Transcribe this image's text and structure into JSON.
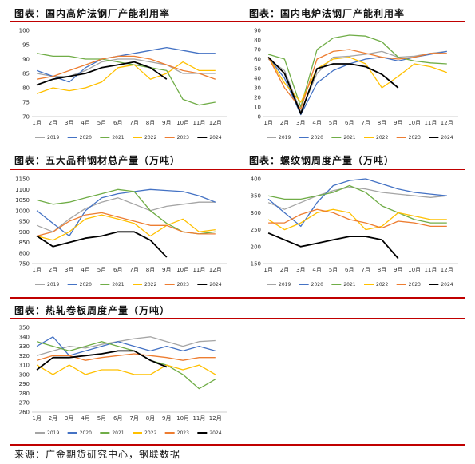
{
  "source": "来源：广金期货研究中心，钢联数据",
  "legend_years": [
    "2019",
    "2020",
    "2021",
    "2022",
    "2023",
    "2024"
  ],
  "colors": {
    "2019": "#a5a5a5",
    "2020": "#4472c4",
    "2021": "#70ad47",
    "2022": "#ffc000",
    "2023": "#ed7d31",
    "2024": "#000000",
    "rule": "#c00000"
  },
  "months": [
    "1月",
    "2月",
    "3月",
    "4月",
    "5月",
    "6月",
    "7月",
    "8月",
    "9月",
    "10月",
    "11月",
    "12月"
  ],
  "charts": [
    {
      "title": "图表：国内高炉法钢厂产能利用率",
      "chart_data": {
        "type": "line",
        "ylim": [
          70,
          100
        ],
        "yticks": [
          70,
          75,
          80,
          85,
          90,
          95,
          100
        ],
        "series": [
          {
            "name": "2019",
            "values": [
              85,
              84,
              84,
              86,
              89,
              90,
              90,
              89,
              88,
              85,
              85,
              85
            ]
          },
          {
            "name": "2020",
            "values": [
              86,
              84,
              82,
              87,
              90,
              91,
              92,
              93,
              94,
              93,
              92,
              92
            ]
          },
          {
            "name": "2021",
            "values": [
              92,
              91,
              91,
              90,
              90,
              89,
              88,
              87,
              86,
              76,
              74,
              75
            ]
          },
          {
            "name": "2022",
            "values": [
              78,
              80,
              79,
              80,
              82,
              87,
              88,
              83,
              85,
              89,
              86,
              86
            ]
          },
          {
            "name": "2023",
            "values": [
              83,
              84,
              86,
              88,
              90,
              91,
              91,
              90,
              88,
              86,
              85,
              83
            ]
          },
          {
            "name": "2024",
            "values": [
              81,
              83,
              84,
              85,
              87,
              88,
              89,
              87,
              83,
              null,
              null,
              null
            ]
          }
        ]
      }
    },
    {
      "title": "图表：国内电炉法钢厂产能利用率",
      "chart_data": {
        "type": "line",
        "ylim": [
          0,
          90
        ],
        "yticks": [
          0,
          10,
          20,
          30,
          40,
          50,
          60,
          70,
          80,
          90
        ],
        "series": [
          {
            "name": "2019",
            "values": [
              60,
              48,
              5,
              45,
              62,
              63,
              65,
              68,
              62,
              63,
              66,
              68
            ]
          },
          {
            "name": "2020",
            "values": [
              62,
              40,
              2,
              35,
              48,
              55,
              60,
              62,
              58,
              62,
              65,
              68
            ]
          },
          {
            "name": "2021",
            "values": [
              65,
              60,
              10,
              70,
              82,
              85,
              84,
              78,
              62,
              58,
              56,
              55
            ]
          },
          {
            "name": "2022",
            "values": [
              62,
              35,
              15,
              50,
              60,
              62,
              55,
              30,
              42,
              55,
              52,
              46
            ]
          },
          {
            "name": "2023",
            "values": [
              62,
              30,
              8,
              60,
              68,
              70,
              66,
              62,
              60,
              62,
              66,
              66
            ]
          },
          {
            "name": "2024",
            "values": [
              62,
              45,
              3,
              50,
              55,
              55,
              52,
              44,
              30,
              null,
              null,
              null
            ]
          }
        ]
      }
    },
    {
      "title": "图表：五大品种钢材总产量（万吨）",
      "chart_data": {
        "type": "line",
        "ylim": [
          750,
          1150
        ],
        "yticks": [
          750,
          800,
          850,
          900,
          950,
          1000,
          1050,
          1100,
          1150
        ],
        "series": [
          {
            "name": "2019",
            "values": [
              930,
              900,
              960,
              1010,
              1040,
              1060,
              1030,
              1000,
              1020,
              1030,
              1040,
              1040
            ]
          },
          {
            "name": "2020",
            "values": [
              1000,
              940,
              880,
              1000,
              1060,
              1080,
              1090,
              1100,
              1095,
              1090,
              1070,
              1040
            ]
          },
          {
            "name": "2021",
            "values": [
              1050,
              1030,
              1040,
              1060,
              1080,
              1100,
              1090,
              1000,
              940,
              900,
              890,
              900
            ]
          },
          {
            "name": "2022",
            "values": [
              880,
              860,
              900,
              960,
              980,
              960,
              940,
              880,
              930,
              960,
              900,
              910
            ]
          },
          {
            "name": "2023",
            "values": [
              880,
              900,
              950,
              980,
              990,
              970,
              950,
              930,
              930,
              900,
              890,
              890
            ]
          },
          {
            "name": "2024",
            "values": [
              880,
              830,
              850,
              870,
              880,
              900,
              900,
              860,
              780,
              null,
              null,
              null
            ]
          }
        ]
      }
    },
    {
      "title": "图表：螺纹钢周度产量（万吨）",
      "chart_data": {
        "type": "line",
        "ylim": [
          150,
          400
        ],
        "yticks": [
          150,
          200,
          250,
          300,
          350,
          400
        ],
        "series": [
          {
            "name": "2019",
            "values": [
              330,
              310,
              330,
              350,
              365,
              375,
              370,
              360,
              355,
              350,
              345,
              350
            ]
          },
          {
            "name": "2020",
            "values": [
              340,
              300,
              260,
              330,
              380,
              395,
              400,
              385,
              370,
              360,
              355,
              350
            ]
          },
          {
            "name": "2021",
            "values": [
              350,
              340,
              340,
              350,
              360,
              380,
              360,
              320,
              300,
              280,
              270,
              270
            ]
          },
          {
            "name": "2022",
            "values": [
              280,
              250,
              270,
              300,
              310,
              300,
              250,
              260,
              300,
              290,
              280,
              280
            ]
          },
          {
            "name": "2023",
            "values": [
              270,
              270,
              295,
              310,
              300,
              280,
              270,
              255,
              275,
              270,
              260,
              260
            ]
          },
          {
            "name": "2024",
            "values": [
              240,
              220,
              200,
              210,
              220,
              230,
              230,
              220,
              165,
              null,
              null,
              null
            ]
          }
        ]
      }
    },
    {
      "title": "图表：热轧卷板周度产量（万吨）",
      "chart_data": {
        "type": "line",
        "ylim": [
          260,
          350
        ],
        "yticks": [
          260,
          270,
          280,
          290,
          300,
          310,
          320,
          330,
          340,
          350
        ],
        "series": [
          {
            "name": "2019",
            "values": [
              320,
              325,
              330,
              328,
              332,
              335,
              338,
              340,
              335,
              330,
              335,
              336
            ]
          },
          {
            "name": "2020",
            "values": [
              330,
              340,
              320,
              325,
              330,
              335,
              330,
              325,
              330,
              325,
              330,
              325
            ]
          },
          {
            "name": "2021",
            "values": [
              335,
              330,
              325,
              330,
              335,
              330,
              325,
              315,
              310,
              300,
              285,
              295
            ]
          },
          {
            "name": "2022",
            "values": [
              310,
              300,
              310,
              300,
              305,
              305,
              300,
              300,
              310,
              305,
              310,
              300
            ]
          },
          {
            "name": "2023",
            "values": [
              315,
              320,
              320,
              315,
              318,
              320,
              322,
              320,
              318,
              315,
              318,
              318
            ]
          },
          {
            "name": "2024",
            "values": [
              305,
              318,
              318,
              320,
              322,
              325,
              325,
              315,
              308,
              null,
              null,
              null
            ]
          }
        ]
      }
    }
  ]
}
